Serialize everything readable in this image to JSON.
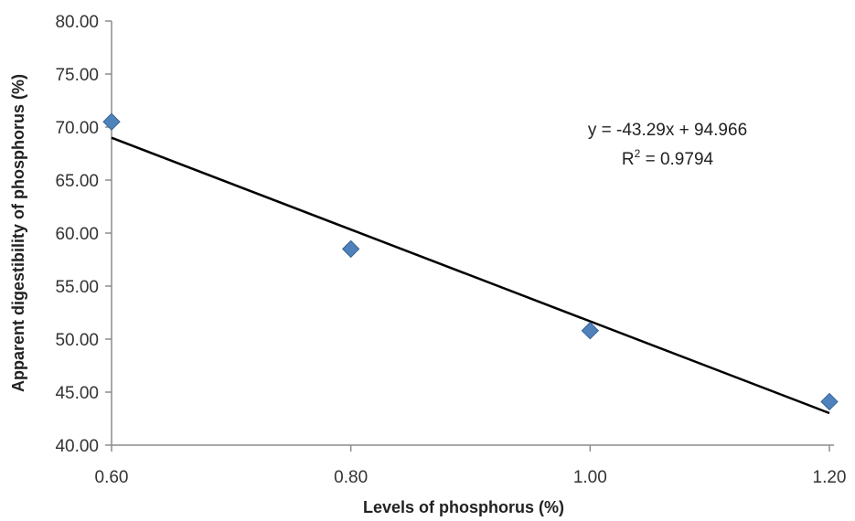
{
  "chart_data": {
    "type": "scatter",
    "title": "",
    "xlabel": "Levels of phosphorus  (%)",
    "ylabel": "Apparent digestibility of phosphorus  (%)",
    "xlim": [
      0.6,
      1.2
    ],
    "ylim": [
      40,
      80
    ],
    "x_ticks": [
      "0.60",
      "0.80",
      "1.00",
      "1.20"
    ],
    "y_ticks": [
      "40.00",
      "45.00",
      "50.00",
      "55.00",
      "60.00",
      "65.00",
      "70.00",
      "75.00",
      "80.00"
    ],
    "grid": false,
    "legend": "none",
    "series": [
      {
        "x": [
          0.6,
          0.8,
          1.0,
          1.2
        ],
        "y": [
          70.5,
          58.5,
          50.8,
          44.1
        ],
        "marker": "diamond",
        "color": "#4f81bd"
      }
    ],
    "trendline": {
      "type": "linear",
      "slope": -43.29,
      "intercept": 94.966,
      "color": "#000000"
    },
    "annotations": {
      "equation": "y = -43.29x + 94.966",
      "r2_prefix": "R",
      "r2_sup": "2",
      "r2_value": " = 0.9794"
    }
  }
}
